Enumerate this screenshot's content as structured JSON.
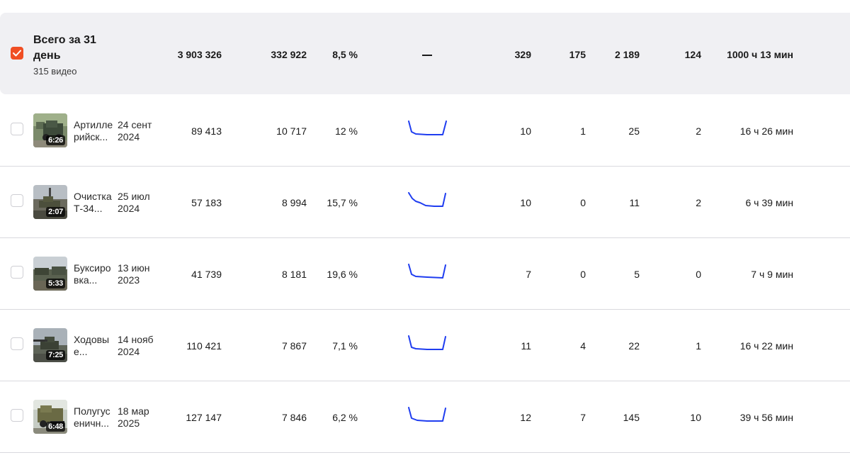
{
  "summary": {
    "title_line1": "Всего за 31",
    "title_line2": "день",
    "subtitle": "315 видео",
    "views": "3 903 326",
    "impressions": "332 922",
    "ctr": "8,5 %",
    "retention": "—",
    "col5": "329",
    "col6": "175",
    "col7": "2 189",
    "col8": "124",
    "watch_time": "1000 ч 13 мин",
    "checkbox_color": "#f04e23"
  },
  "rows": [
    {
      "title_line1": "Артилле",
      "title_line2": "рийск...",
      "date_line1": "24 сент",
      "date_line2": "2024",
      "duration": "6:26",
      "views": "89 413",
      "impressions": "10 717",
      "ctr": "12 %",
      "col5": "10",
      "col6": "1",
      "col7": "25",
      "col8": "2",
      "watch_time": "16 ч 26 мин"
    },
    {
      "title_line1": "Очистка",
      "title_line2": "Т-34...",
      "date_line1": "25 июл",
      "date_line2": "2024",
      "duration": "2:07",
      "views": "57 183",
      "impressions": "8 994",
      "ctr": "15,7 %",
      "col5": "10",
      "col6": "0",
      "col7": "11",
      "col8": "2",
      "watch_time": "6 ч 39 мин"
    },
    {
      "title_line1": "Буксиро",
      "title_line2": "вка...",
      "date_line1": "13 июн",
      "date_line2": "2023",
      "duration": "5:33",
      "views": "41 739",
      "impressions": "8 181",
      "ctr": "19,6 %",
      "col5": "7",
      "col6": "0",
      "col7": "5",
      "col8": "0",
      "watch_time": "7 ч 9 мин"
    },
    {
      "title_line1": "Ходовы",
      "title_line2": "е...",
      "date_line1": "14 нояб",
      "date_line2": "2024",
      "duration": "7:25",
      "views": "110 421",
      "impressions": "7 867",
      "ctr": "7,1 %",
      "col5": "11",
      "col6": "4",
      "col7": "22",
      "col8": "1",
      "watch_time": "16 ч 22 мин"
    },
    {
      "title_line1": "Полугус",
      "title_line2": "еничн...",
      "date_line1": "18 мар",
      "date_line2": "2025",
      "duration": "6:48",
      "views": "127 147",
      "impressions": "7 846",
      "ctr": "6,2 %",
      "col5": "12",
      "col6": "7",
      "col7": "145",
      "col8": "10",
      "watch_time": "39 ч 56 мин"
    }
  ],
  "sparkline_color": "#1f3df0"
}
